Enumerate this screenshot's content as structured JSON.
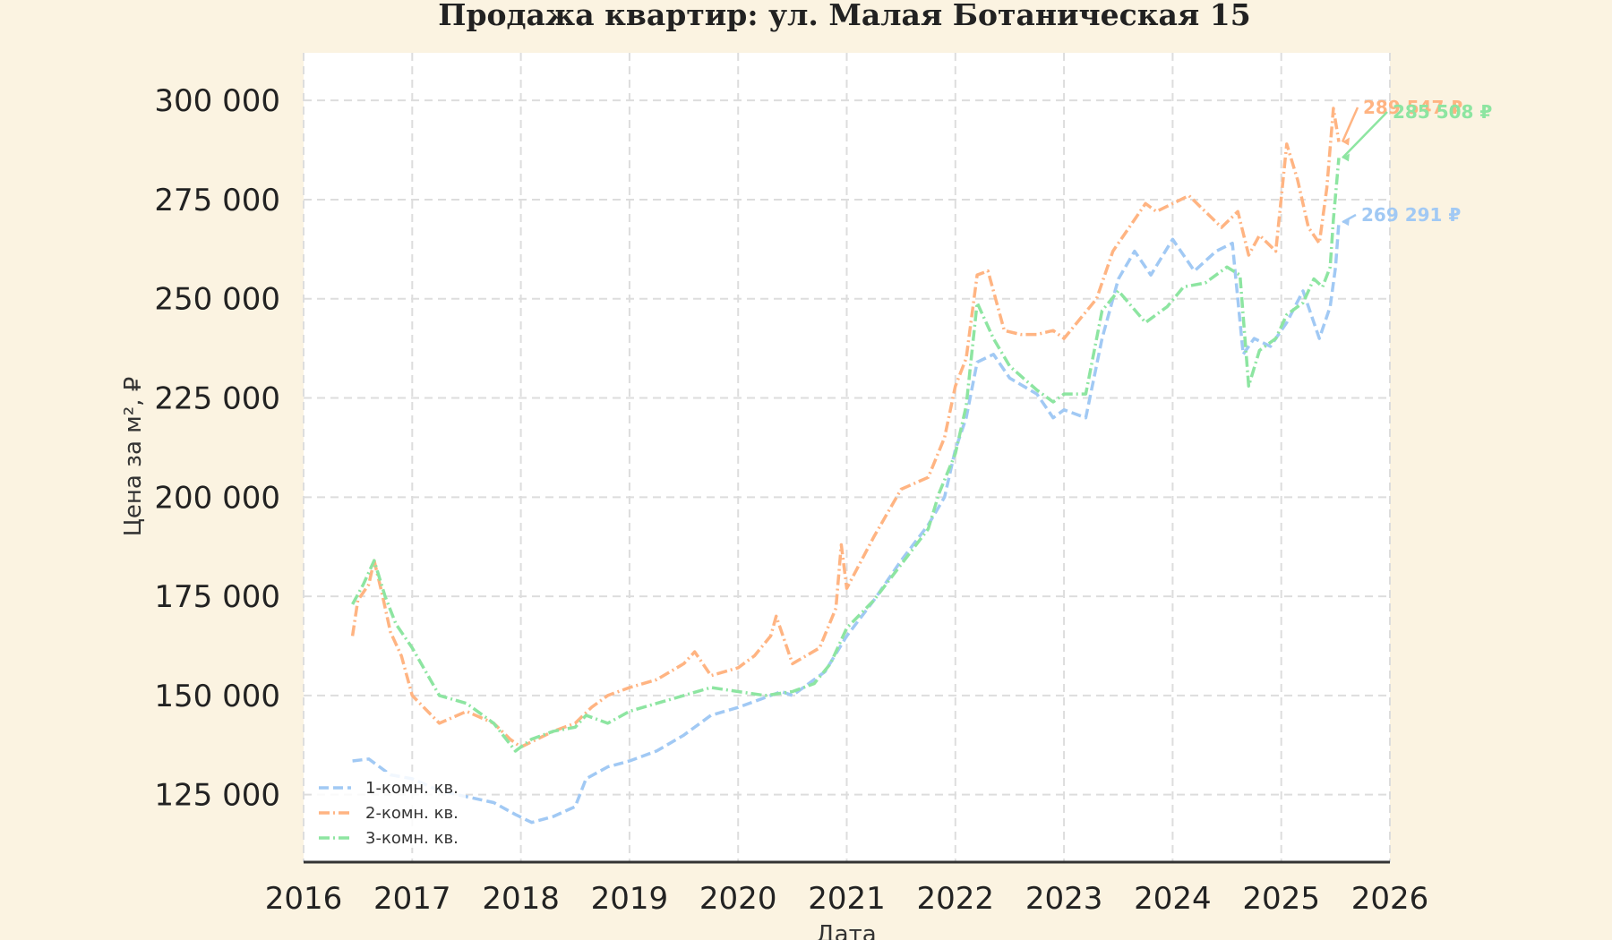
{
  "chart_data": {
    "type": "line",
    "title": "Продажа квартир: ул. Малая Ботаническая 15",
    "xlabel": "Дата",
    "ylabel": "Цена за м², ₽",
    "xlim": [
      2016,
      2026
    ],
    "ylim": [
      108000,
      312000
    ],
    "x_ticks": [
      2016,
      2017,
      2018,
      2019,
      2020,
      2021,
      2022,
      2023,
      2024,
      2025,
      2026
    ],
    "x_tick_labels": [
      "2016",
      "2017",
      "2018",
      "2019",
      "2020",
      "2021",
      "2022",
      "2023",
      "2024",
      "2025",
      "2026"
    ],
    "y_ticks": [
      125000,
      150000,
      175000,
      200000,
      225000,
      250000,
      275000,
      300000
    ],
    "y_tick_labels": [
      "125 000",
      "150 000",
      "175 000",
      "200 000",
      "225 000",
      "250 000",
      "275 000",
      "300 000"
    ],
    "grid": true,
    "legend_position": "bottom-left",
    "series": [
      {
        "name": "1-комн. кв.",
        "color": "#a1c9f4",
        "dash": "dashed",
        "x": [
          2016.45,
          2016.6,
          2016.8,
          2017.0,
          2017.25,
          2017.5,
          2017.75,
          2017.95,
          2018.1,
          2018.3,
          2018.5,
          2018.6,
          2018.8,
          2019.0,
          2019.25,
          2019.5,
          2019.75,
          2020.0,
          2020.2,
          2020.4,
          2020.5,
          2020.65,
          2020.8,
          2021.0,
          2021.25,
          2021.5,
          2021.75,
          2021.9,
          2022.0,
          2022.1,
          2022.2,
          2022.35,
          2022.5,
          2022.75,
          2022.9,
          2023.0,
          2023.2,
          2023.35,
          2023.5,
          2023.65,
          2023.8,
          2024.0,
          2024.2,
          2024.4,
          2024.55,
          2024.65,
          2024.75,
          2024.9,
          2025.05,
          2025.2,
          2025.35,
          2025.45,
          2025.5,
          2025.53
        ],
        "values": [
          133500,
          134000,
          130000,
          129000,
          126000,
          124500,
          123000,
          120000,
          118000,
          119500,
          122000,
          129000,
          132000,
          133500,
          136000,
          140000,
          145000,
          147000,
          149000,
          151000,
          150000,
          153000,
          156000,
          165000,
          174000,
          184000,
          193000,
          200000,
          212000,
          220000,
          234000,
          236000,
          230000,
          226000,
          220000,
          222000,
          220000,
          240000,
          255000,
          262000,
          256000,
          265000,
          257000,
          262000,
          264000,
          236000,
          240000,
          238000,
          244000,
          252000,
          240000,
          248000,
          258000,
          269291
        ]
      },
      {
        "name": "2-комн. кв.",
        "color": "#ffb482",
        "dash": "dashdot",
        "x": [
          2016.45,
          2016.5,
          2016.55,
          2016.6,
          2016.65,
          2016.72,
          2016.8,
          2016.9,
          2017.0,
          2017.25,
          2017.5,
          2017.75,
          2017.9,
          2018.0,
          2018.15,
          2018.3,
          2018.5,
          2018.65,
          2018.8,
          2019.0,
          2019.25,
          2019.5,
          2019.6,
          2019.75,
          2020.0,
          2020.15,
          2020.3,
          2020.35,
          2020.5,
          2020.75,
          2020.9,
          2020.95,
          2021.0,
          2021.25,
          2021.5,
          2021.75,
          2021.9,
          2022.0,
          2022.1,
          2022.2,
          2022.3,
          2022.45,
          2022.6,
          2022.75,
          2022.9,
          2023.0,
          2023.15,
          2023.3,
          2023.45,
          2023.6,
          2023.75,
          2023.85,
          2024.0,
          2024.15,
          2024.3,
          2024.45,
          2024.6,
          2024.7,
          2024.8,
          2024.95,
          2025.05,
          2025.15,
          2025.25,
          2025.35,
          2025.42,
          2025.48,
          2025.53
        ],
        "values": [
          165000,
          174000,
          176000,
          178000,
          184000,
          176000,
          166000,
          160000,
          150000,
          143000,
          146000,
          143000,
          139000,
          137000,
          139000,
          141000,
          143000,
          147000,
          150000,
          152000,
          154000,
          158000,
          161000,
          155000,
          157000,
          160000,
          165000,
          170000,
          158000,
          162000,
          172000,
          188000,
          177000,
          190000,
          202000,
          205000,
          215000,
          228000,
          235000,
          256000,
          257000,
          242000,
          241000,
          241000,
          242000,
          240000,
          245000,
          250000,
          262000,
          268000,
          274000,
          272000,
          274000,
          276000,
          272000,
          268000,
          272000,
          261000,
          266000,
          262000,
          289000,
          280000,
          268000,
          264000,
          278000,
          298000,
          289547
        ]
      },
      {
        "name": "3-комн. кв.",
        "color": "#8de5a1",
        "dash": "dashdot",
        "x": [
          2016.45,
          2016.55,
          2016.65,
          2016.75,
          2016.85,
          2017.0,
          2017.25,
          2017.5,
          2017.75,
          2017.95,
          2018.1,
          2018.3,
          2018.5,
          2018.6,
          2018.8,
          2019.0,
          2019.25,
          2019.5,
          2019.75,
          2020.0,
          2020.25,
          2020.5,
          2020.7,
          2020.85,
          2021.0,
          2021.25,
          2021.5,
          2021.75,
          2021.85,
          2022.0,
          2022.1,
          2022.2,
          2022.35,
          2022.5,
          2022.75,
          2022.9,
          2023.0,
          2023.2,
          2023.35,
          2023.5,
          2023.75,
          2023.95,
          2024.1,
          2024.3,
          2024.5,
          2024.62,
          2024.7,
          2024.8,
          2024.95,
          2025.05,
          2025.2,
          2025.3,
          2025.38,
          2025.45,
          2025.48,
          2025.53
        ],
        "values": [
          173000,
          178000,
          184000,
          175000,
          168000,
          162000,
          150000,
          148000,
          143000,
          136000,
          139000,
          141000,
          142000,
          145000,
          143000,
          146000,
          148000,
          150000,
          152000,
          151000,
          150000,
          151000,
          153000,
          158000,
          167000,
          174000,
          183000,
          192000,
          201000,
          211000,
          223000,
          249000,
          240000,
          233000,
          227000,
          224000,
          226000,
          226000,
          247000,
          252000,
          244000,
          248000,
          253000,
          254000,
          258000,
          256000,
          228000,
          237000,
          240000,
          246000,
          249000,
          255000,
          253000,
          258000,
          270000,
          285508
        ]
      }
    ],
    "annotations": [
      {
        "label": "289 547 ₽",
        "color": "#ffb482",
        "series": "2-комн. кв."
      },
      {
        "label": "285 508 ₽",
        "color": "#8de5a1",
        "series": "3-комн. кв."
      },
      {
        "label": "269 291 ₽",
        "color": "#a1c9f4",
        "series": "1-комн. кв."
      }
    ]
  }
}
